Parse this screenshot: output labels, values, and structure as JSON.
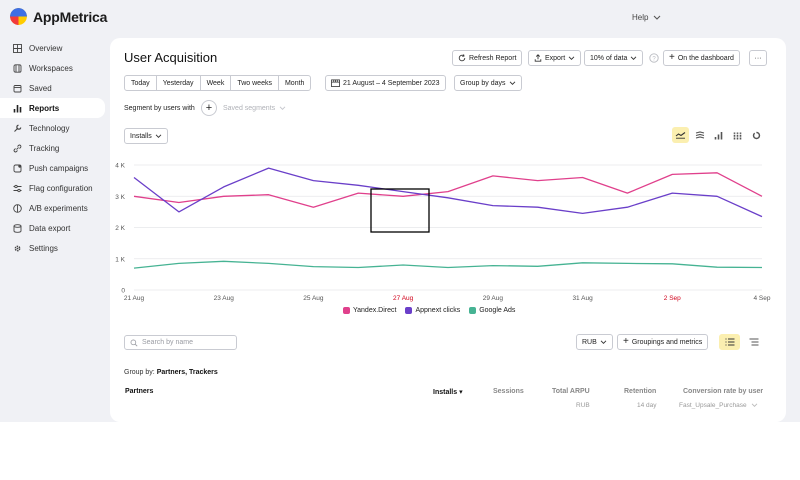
{
  "app": {
    "name": "AppMetrica",
    "help": "Help"
  },
  "sidebar": {
    "items": [
      {
        "label": "Overview",
        "icon": "grid-icon"
      },
      {
        "label": "Workspaces",
        "icon": "workspaces-icon"
      },
      {
        "label": "Saved",
        "icon": "bookmark-icon"
      },
      {
        "label": "Reports",
        "icon": "bar-chart-icon",
        "active": true
      },
      {
        "label": "Technology",
        "icon": "wrench-icon"
      },
      {
        "label": "Tracking",
        "icon": "link-icon"
      },
      {
        "label": "Push campaigns",
        "icon": "push-icon"
      },
      {
        "label": "Flag configuration",
        "icon": "sliders-icon"
      },
      {
        "label": "A/B experiments",
        "icon": "ab-icon"
      },
      {
        "label": "Data export",
        "icon": "database-icon"
      },
      {
        "label": "Settings",
        "icon": "gear-icon"
      }
    ]
  },
  "page": {
    "title": "User Acquisition",
    "refresh": "Refresh Report",
    "export": "Export",
    "sampling": "10% of data",
    "dashboard": "On the dashboard",
    "more": "···"
  },
  "periods": [
    "Today",
    "Yesterday",
    "Week",
    "Two weeks",
    "Month"
  ],
  "date_range": "21 August – 4 September 2023",
  "group_by_days": "Group by days",
  "segment": {
    "label": "Segment by users with",
    "saved": "Saved segments"
  },
  "metric_select": "Installs",
  "chart_data": {
    "type": "line",
    "x": [
      "21 Aug",
      "22 Aug",
      "23 Aug",
      "24 Aug",
      "25 Aug",
      "26 Aug",
      "27 Aug",
      "28 Aug",
      "29 Aug",
      "30 Aug",
      "31 Aug",
      "1 Sep",
      "2 Sep",
      "3 Sep",
      "4 Sep"
    ],
    "x_tick_labels": [
      "21 Aug",
      "23 Aug",
      "25 Aug",
      "27 Aug",
      "29 Aug",
      "31 Aug",
      "2 Sep",
      "4 Sep"
    ],
    "highlight_ticks": [
      "27 Aug",
      "2 Sep"
    ],
    "y_ticks": [
      "0",
      "1 K",
      "2 K",
      "3 K",
      "4 K"
    ],
    "ylim": [
      0,
      4000
    ],
    "grid": true,
    "legend_position": "bottom",
    "series": [
      {
        "name": "Yandex.Direct",
        "color": "#e0408c",
        "values": [
          3000,
          2800,
          3000,
          3050,
          2650,
          3100,
          3000,
          3150,
          3650,
          3500,
          3600,
          3100,
          3700,
          3750,
          3000
        ]
      },
      {
        "name": "Appnext clicks",
        "color": "#6a3fc9",
        "values": [
          3600,
          2500,
          3300,
          3900,
          3500,
          3350,
          3150,
          2950,
          2700,
          2650,
          2450,
          2650,
          3100,
          3000,
          2350
        ]
      },
      {
        "name": "Google Ads",
        "color": "#46b393",
        "values": [
          700,
          850,
          920,
          850,
          750,
          720,
          800,
          720,
          780,
          760,
          870,
          850,
          840,
          730,
          720
        ]
      }
    ]
  },
  "table": {
    "search_placeholder": "Search by name",
    "currency": "RUB",
    "groupings": "Groupings and metrics",
    "group_by_label": "Group by:",
    "group_by_value": "Partners, Trackers",
    "columns": [
      {
        "label": "Partners"
      },
      {
        "label": "Installs ▾"
      },
      {
        "label": "Sessions"
      },
      {
        "label": "Total ARPU",
        "sub": "RUB"
      },
      {
        "label": "Retention",
        "sub": "14 day"
      },
      {
        "label": "Conversion rate by user",
        "sub": "Fast_Upsale_Purchase"
      }
    ]
  }
}
